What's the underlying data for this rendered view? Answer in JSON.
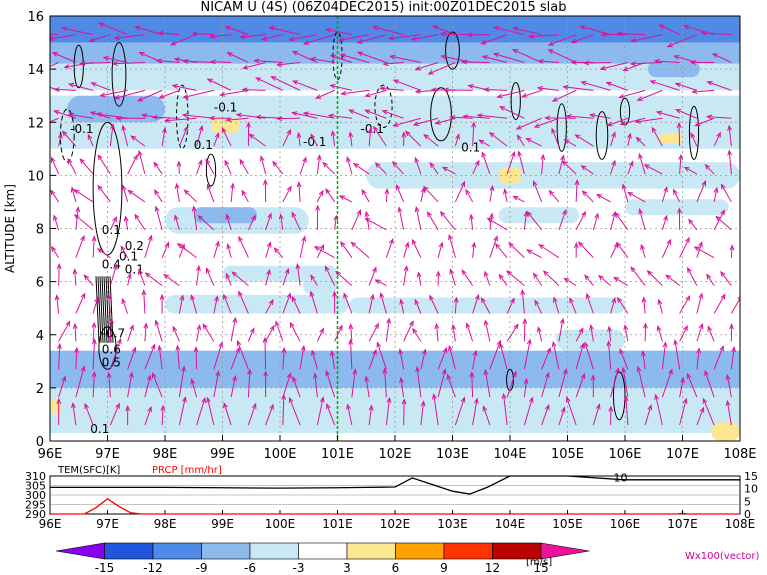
{
  "chart_data": [
    {
      "type": "heatmap",
      "title": "NICAM U (4S) (06Z04DEC2015) init:00Z01DEC2015 slab",
      "ylabel": "ALTITUDE [km]",
      "xlim": [
        96,
        108
      ],
      "ylim": [
        0,
        16
      ],
      "x_ticks": [
        "96E",
        "97E",
        "98E",
        "99E",
        "100E",
        "101E",
        "102E",
        "103E",
        "104E",
        "105E",
        "106E",
        "107E",
        "108E"
      ],
      "y_ticks": [
        "0",
        "2",
        "4",
        "6",
        "8",
        "10",
        "12",
        "14",
        "16"
      ],
      "grid": true,
      "marker_longitude": 101.0,
      "contour_labels": [
        "-0.1",
        "-0.1",
        "-0.1",
        "-0.1",
        "0.1",
        "0.1",
        "0.1",
        "0.2",
        "0.1",
        "0.1",
        "0.4",
        "-0.7",
        "0.6",
        "0.5",
        "0.1"
      ],
      "bands": [
        {
          "y0": 15.0,
          "y1": 16.0,
          "value": -9
        },
        {
          "y0": 14.2,
          "y1": 15.0,
          "value": -6
        },
        {
          "y0": 13.2,
          "y1": 14.2,
          "value": -3
        },
        {
          "y0": 11.0,
          "y1": 13.0,
          "value": -3
        },
        {
          "y0": 2.0,
          "y1": 3.4,
          "value": -6
        },
        {
          "y0": 0.3,
          "y1": 2.0,
          "value": -3
        }
      ],
      "patches": [
        {
          "x0": 96.3,
          "x1": 98.0,
          "y0": 12.0,
          "y1": 13.0,
          "value": -6
        },
        {
          "x0": 98.0,
          "x1": 100.5,
          "y0": 7.8,
          "y1": 8.8,
          "value": -3
        },
        {
          "x0": 98.5,
          "x1": 99.6,
          "y0": 8.2,
          "y1": 8.8,
          "value": -6
        },
        {
          "x0": 100.4,
          "x1": 101.0,
          "y0": 5.5,
          "y1": 6.2,
          "value": -3
        },
        {
          "x0": 101.5,
          "x1": 108.0,
          "y0": 9.5,
          "y1": 10.5,
          "value": -3
        },
        {
          "x0": 103.8,
          "x1": 105.2,
          "y0": 8.2,
          "y1": 8.8,
          "value": -3
        },
        {
          "x0": 106.0,
          "x1": 107.8,
          "y0": 8.5,
          "y1": 9.1,
          "value": -3
        },
        {
          "x0": 98.0,
          "x1": 101.2,
          "y0": 4.8,
          "y1": 5.5,
          "value": -3
        },
        {
          "x0": 101.2,
          "x1": 106.0,
          "y0": 4.8,
          "y1": 5.4,
          "value": -3
        },
        {
          "x0": 99.0,
          "x1": 101.0,
          "y0": 6.0,
          "y1": 6.6,
          "value": -3
        },
        {
          "x0": 104.8,
          "x1": 106.0,
          "y0": 3.4,
          "y1": 4.2,
          "value": -3
        },
        {
          "x0": 106.4,
          "x1": 107.3,
          "y0": 13.7,
          "y1": 14.3,
          "value": -6
        },
        {
          "x0": 98.8,
          "x1": 99.3,
          "y0": 11.6,
          "y1": 12.2,
          "value": 3
        },
        {
          "x0": 103.8,
          "x1": 104.2,
          "y0": 9.7,
          "y1": 10.3,
          "value": 3
        },
        {
          "x0": 106.6,
          "x1": 107.0,
          "y0": 11.2,
          "y1": 11.6,
          "value": 3
        },
        {
          "x0": 107.5,
          "x1": 108.0,
          "y0": 0.0,
          "y1": 0.7,
          "value": 3
        },
        {
          "x0": 96.0,
          "x1": 96.2,
          "y0": 1.0,
          "y1": 1.6,
          "value": 3
        }
      ]
    },
    {
      "type": "line",
      "labels": [
        "TEM(SFC)[K]",
        "PRCP [mm/hr]"
      ],
      "y_ticks_left": [
        "310",
        "305",
        "300",
        "295",
        "290"
      ],
      "y_ticks_right": [
        "15",
        "10",
        "5",
        "0"
      ],
      "x_ticks": [
        "96E",
        "97E",
        "98E",
        "99E",
        "100E",
        "101E",
        "102E",
        "103E",
        "104E",
        "105E",
        "106E",
        "107E",
        "108E"
      ],
      "contour_label": "10",
      "series": [
        {
          "name": "TEM(SFC)[K]",
          "color": "#000000",
          "x": [
            96.0,
            97.0,
            98.0,
            99.0,
            100.0,
            101.0,
            101.5,
            102.0,
            102.3,
            102.6,
            103.0,
            103.3,
            103.6,
            104.0,
            105.0,
            106.0,
            107.0,
            108.0
          ],
          "y": [
            304.0,
            304.0,
            304.0,
            303.8,
            303.6,
            303.8,
            304.0,
            304.2,
            309.0,
            306.0,
            302.0,
            300.5,
            304.0,
            310.0,
            310.0,
            308.0,
            308.0,
            308.0
          ]
        },
        {
          "name": "PRCP [mm/hr]",
          "color": "#ff0000",
          "x": [
            96.0,
            96.6,
            96.8,
            97.0,
            97.2,
            97.4,
            97.6,
            98.0,
            106.9,
            107.0,
            107.1,
            108.0
          ],
          "y": [
            0,
            0,
            2.5,
            6,
            3,
            0.5,
            0,
            0,
            0,
            0.3,
            0,
            0
          ]
        }
      ]
    },
    {
      "type": "colorbar",
      "ticks": [
        "-15",
        "-12",
        "-9",
        "-6",
        "-3",
        "3",
        "6",
        "9",
        "12",
        "15"
      ],
      "unit": "[m/s]",
      "colors": [
        "#8800ee",
        "#2255dd",
        "#4f8ae6",
        "#8cb9ee",
        "#c8e9f4",
        "#ffffff",
        "#fbe790",
        "#ffa200",
        "#ff3300",
        "#bb0000",
        "#ee1199"
      ]
    }
  ],
  "vector_label": "Wx100(vector)",
  "colors": {
    "vector": "#dd1199",
    "marker_line": "#00aa00",
    "grid": "#999999"
  }
}
